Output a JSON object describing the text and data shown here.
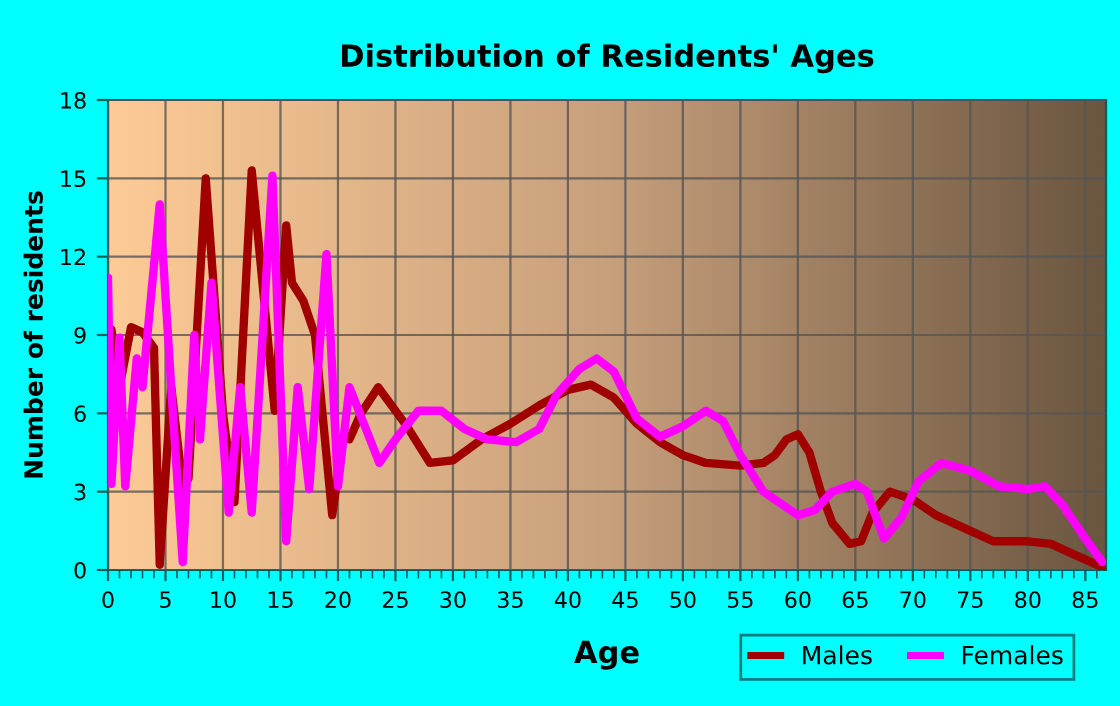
{
  "chart_data": {
    "type": "line",
    "title": "Distribution of Residents' Ages",
    "xlabel": "Age",
    "ylabel": "Number of residents",
    "xlim": [
      0,
      86.8
    ],
    "xticks": [
      0,
      5,
      10,
      15,
      20,
      25,
      30,
      35,
      40,
      45,
      50,
      55,
      60,
      65,
      70,
      75,
      80,
      85
    ],
    "ylim": [
      0,
      18
    ],
    "yticks": [
      0,
      3,
      6,
      9,
      12,
      15,
      18
    ],
    "grid": true,
    "legend": "bottom right",
    "line_style": "solid",
    "marker": "none",
    "series": [
      {
        "name": "Males",
        "color": "#a00000",
        "x": [
          0,
          0.3,
          1,
          2,
          3,
          4,
          4.5,
          5.5,
          6.5,
          7,
          8.5,
          10,
          11,
          12.5,
          14.5,
          15.5,
          16,
          17,
          18,
          19.5,
          20.5,
          21,
          22,
          23.5,
          26,
          28,
          30,
          32.5,
          35,
          37.5,
          40,
          42,
          44,
          46,
          48,
          50,
          52,
          55,
          57,
          58,
          59,
          60,
          61,
          62,
          63,
          64.5,
          65.5,
          66.5,
          68,
          70,
          72,
          75,
          77,
          80,
          82,
          84,
          86.5
        ],
        "values": [
          6,
          9.2,
          7,
          9.3,
          9.1,
          8.5,
          0.2,
          7,
          3.2,
          3.5,
          15,
          6,
          2.6,
          15.3,
          6.1,
          13.2,
          11,
          10.3,
          9,
          2.1,
          5.2,
          5,
          6,
          7,
          5.5,
          4.1,
          4.2,
          5.0,
          5.6,
          6.3,
          6.9,
          7.1,
          6.6,
          5.6,
          4.9,
          4.4,
          4.1,
          4.0,
          4.1,
          4.4,
          5.0,
          5.2,
          4.5,
          3,
          1.8,
          1.0,
          1.1,
          2.2,
          3.0,
          2.7,
          2.1,
          1.5,
          1.1,
          1.1,
          1.0,
          0.6,
          0.1
        ]
      },
      {
        "name": "Females",
        "color": "#ff00ff",
        "x": [
          0,
          0.3,
          1,
          1.5,
          2.5,
          3,
          4.5,
          5.5,
          6.5,
          7.5,
          8,
          9,
          10.5,
          11.5,
          12.5,
          14.3,
          15.5,
          16.5,
          17.5,
          19,
          20,
          21,
          23.6,
          25,
          27,
          29,
          31,
          33,
          35.5,
          37.5,
          39,
          41,
          42.5,
          44,
          46,
          48,
          50,
          52,
          53.5,
          55,
          57,
          59,
          60,
          61.5,
          63,
          65,
          66,
          67.5,
          69,
          70.5,
          72.5,
          75,
          77.5,
          80,
          81.5,
          83,
          85,
          86.5
        ],
        "values": [
          11.2,
          3.3,
          8.9,
          3.2,
          8.1,
          7,
          14,
          7,
          0.3,
          9,
          5,
          11,
          2.2,
          7,
          2.2,
          15.1,
          1.1,
          7,
          3.1,
          12.1,
          3.2,
          7,
          4.1,
          5,
          6.1,
          6.1,
          5.4,
          5.0,
          4.9,
          5.4,
          6.7,
          7.7,
          8.1,
          7.6,
          5.8,
          5.1,
          5.5,
          6.1,
          5.7,
          4.4,
          3.0,
          2.4,
          2.1,
          2.3,
          3.0,
          3.3,
          3.0,
          1.2,
          2.0,
          3.4,
          4.1,
          3.8,
          3.2,
          3.1,
          3.2,
          2.5,
          1.2,
          0.3
        ]
      }
    ]
  }
}
